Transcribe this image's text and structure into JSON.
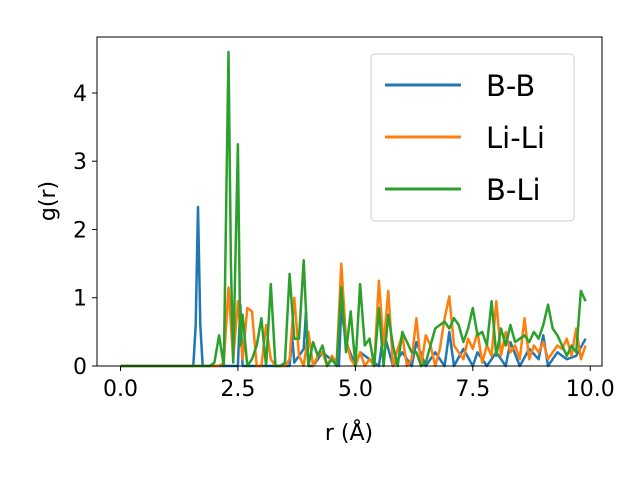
{
  "chart_data": {
    "type": "line",
    "xlabel": "r (Å)",
    "ylabel": "g(r)",
    "xlim": [
      -0.5,
      10.25
    ],
    "ylim": [
      0,
      4.82
    ],
    "xticks": [
      0.0,
      2.5,
      5.0,
      7.5,
      10.0
    ],
    "xtick_labels": [
      "0.0",
      "2.5",
      "5.0",
      "7.5",
      "10.0"
    ],
    "yticks": [
      0,
      1,
      2,
      3,
      4
    ],
    "ytick_labels": [
      "0",
      "1",
      "2",
      "3",
      "4"
    ],
    "grid": false,
    "legend_position": "upper right",
    "series": [
      {
        "name": "B-B",
        "color": "#1f77b4",
        "x": [
          0.0,
          1.5,
          1.55,
          1.6,
          1.65,
          1.7,
          1.75,
          2.4,
          2.5,
          2.55,
          2.6,
          3.6,
          3.65,
          3.7,
          3.9,
          3.95,
          4.0,
          4.1,
          4.3,
          4.65,
          4.7,
          4.8,
          5.0,
          5.1,
          5.3,
          5.5,
          5.6,
          5.8,
          6.0,
          6.2,
          6.3,
          6.5,
          6.7,
          6.9,
          7.0,
          7.1,
          7.3,
          7.5,
          7.6,
          7.8,
          8.0,
          8.2,
          8.3,
          8.5,
          8.7,
          8.9,
          9.0,
          9.1,
          9.3,
          9.5,
          9.7,
          9.9
        ],
        "y": [
          0.0,
          0.0,
          0.0,
          0.6,
          2.33,
          0.6,
          0.0,
          0.0,
          0.0,
          0.9,
          0.0,
          0.0,
          0.45,
          0.05,
          0.25,
          0.8,
          0.0,
          0.0,
          0.2,
          0.0,
          0.85,
          0.35,
          0.0,
          0.2,
          0.1,
          0.0,
          0.5,
          0.0,
          0.2,
          0.0,
          0.35,
          0.0,
          0.2,
          0.0,
          0.5,
          0.0,
          0.25,
          0.0,
          0.2,
          0.0,
          0.2,
          0.0,
          0.35,
          0.0,
          0.25,
          0.1,
          0.45,
          0.0,
          0.2,
          0.1,
          0.15,
          0.4
        ]
      },
      {
        "name": "Li-Li",
        "color": "#ff7f0e",
        "x": [
          0.0,
          2.0,
          2.1,
          2.2,
          2.3,
          2.4,
          2.5,
          2.6,
          2.7,
          2.8,
          2.9,
          3.0,
          3.1,
          3.2,
          3.3,
          3.4,
          3.5,
          3.6,
          3.7,
          3.8,
          3.9,
          4.0,
          4.1,
          4.2,
          4.3,
          4.4,
          4.5,
          4.6,
          4.7,
          4.8,
          4.9,
          5.0,
          5.1,
          5.2,
          5.3,
          5.4,
          5.5,
          5.6,
          5.7,
          5.8,
          5.9,
          6.0,
          6.1,
          6.2,
          6.3,
          6.4,
          6.5,
          6.6,
          6.7,
          6.8,
          6.9,
          7.0,
          7.1,
          7.2,
          7.3,
          7.4,
          7.5,
          7.6,
          7.7,
          7.8,
          7.9,
          8.0,
          8.1,
          8.2,
          8.3,
          8.4,
          8.5,
          8.6,
          8.7,
          8.8,
          8.9,
          9.0,
          9.1,
          9.2,
          9.3,
          9.4,
          9.5,
          9.6,
          9.7,
          9.8,
          9.9
        ],
        "y": [
          0.0,
          0.0,
          0.0,
          0.05,
          1.15,
          0.1,
          0.95,
          0.1,
          0.85,
          0.8,
          0.0,
          0.0,
          0.6,
          0.1,
          0.0,
          0.0,
          0.0,
          0.1,
          1.0,
          0.15,
          0.0,
          0.5,
          0.0,
          0.15,
          0.2,
          0.0,
          0.15,
          0.05,
          1.5,
          0.4,
          0.1,
          0.0,
          0.2,
          0.0,
          0.1,
          0.0,
          1.25,
          0.3,
          1.1,
          0.0,
          0.25,
          0.45,
          0.0,
          0.1,
          0.7,
          0.0,
          0.45,
          0.3,
          0.0,
          0.25,
          0.7,
          1.02,
          0.3,
          0.2,
          0.1,
          0.4,
          0.25,
          0.5,
          0.05,
          0.3,
          0.15,
          0.95,
          0.15,
          0.5,
          0.2,
          0.3,
          0.1,
          0.7,
          0.1,
          0.3,
          0.2,
          0.35,
          0.1,
          0.2,
          0.3,
          0.25,
          0.4,
          0.15,
          0.55,
          0.1,
          0.3
        ]
      },
      {
        "name": "B-Li",
        "color": "#2ca02c",
        "x": [
          0.0,
          1.9,
          2.0,
          2.1,
          2.2,
          2.3,
          2.35,
          2.4,
          2.5,
          2.55,
          2.6,
          2.7,
          2.8,
          2.9,
          3.0,
          3.1,
          3.2,
          3.3,
          3.4,
          3.5,
          3.6,
          3.7,
          3.8,
          3.9,
          4.0,
          4.1,
          4.2,
          4.3,
          4.4,
          4.5,
          4.6,
          4.7,
          4.8,
          4.9,
          5.0,
          5.1,
          5.2,
          5.3,
          5.4,
          5.5,
          5.6,
          5.7,
          5.8,
          5.9,
          6.0,
          6.1,
          6.2,
          6.3,
          6.4,
          6.5,
          6.6,
          6.7,
          6.8,
          6.9,
          7.0,
          7.1,
          7.2,
          7.3,
          7.4,
          7.5,
          7.6,
          7.7,
          7.8,
          7.9,
          8.0,
          8.1,
          8.2,
          8.3,
          8.4,
          8.5,
          8.6,
          8.7,
          8.8,
          8.9,
          9.0,
          9.1,
          9.2,
          9.3,
          9.4,
          9.5,
          9.6,
          9.7,
          9.8,
          9.9
        ],
        "y": [
          0.0,
          0.0,
          0.05,
          0.45,
          0.0,
          4.6,
          1.5,
          0.05,
          3.25,
          0.3,
          0.75,
          0.0,
          0.1,
          0.3,
          0.7,
          0.0,
          1.2,
          0.0,
          0.0,
          0.05,
          1.35,
          0.4,
          0.4,
          1.55,
          0.0,
          0.35,
          0.15,
          0.3,
          0.0,
          0.1,
          0.0,
          1.15,
          0.2,
          0.8,
          0.0,
          1.2,
          0.3,
          0.4,
          0.0,
          0.85,
          0.0,
          0.75,
          0.3,
          0.0,
          0.5,
          0.35,
          0.2,
          0.2,
          0.0,
          0.05,
          0.3,
          0.55,
          0.6,
          0.65,
          0.55,
          0.7,
          0.6,
          0.35,
          0.55,
          0.85,
          0.45,
          0.5,
          0.3,
          0.95,
          0.15,
          0.55,
          0.3,
          0.6,
          0.35,
          0.4,
          0.45,
          0.35,
          0.5,
          0.4,
          0.6,
          0.9,
          0.55,
          0.45,
          0.3,
          0.15,
          0.3,
          0.2,
          1.1,
          0.95
        ]
      }
    ]
  }
}
